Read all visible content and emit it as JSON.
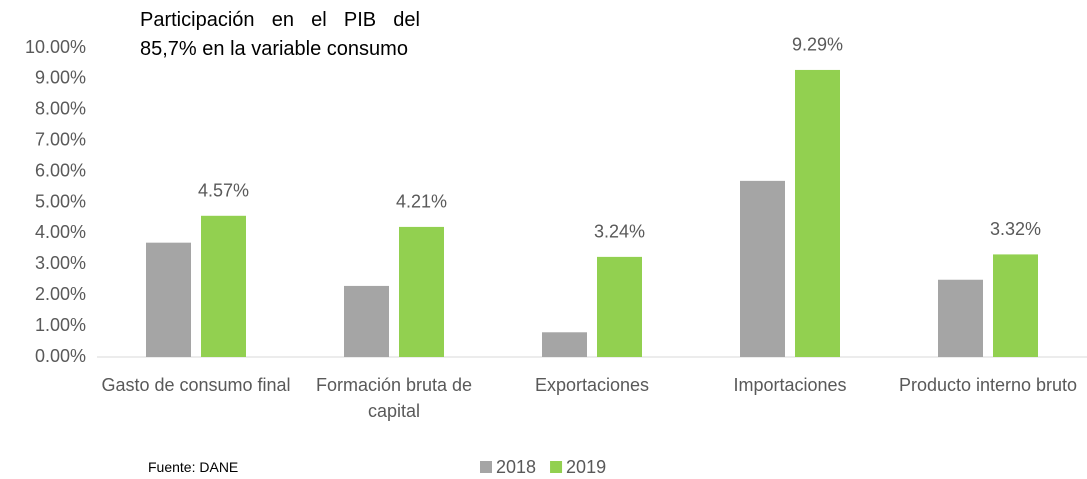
{
  "chart_data": {
    "type": "bar",
    "annotation": "Participación en el PIB del 85,7% en la variable consumo",
    "source": "Fuente: DANE",
    "categories": [
      "Gasto de consumo final",
      "Formación bruta de capital",
      "Exportaciones",
      "Importaciones",
      "Producto interno bruto"
    ],
    "series": [
      {
        "name": "2018",
        "color": "#a5a5a5",
        "values": [
          3.7,
          2.3,
          0.8,
          5.7,
          2.5
        ]
      },
      {
        "name": "2019",
        "color": "#92d050",
        "values": [
          4.57,
          4.21,
          3.24,
          9.29,
          3.32
        ],
        "value_labels": [
          "4.57%",
          "4.21%",
          "3.24%",
          "9.29%",
          "3.32%"
        ]
      }
    ],
    "ylim": [
      0,
      10
    ],
    "yticks": [
      {
        "value": 0,
        "label": "0.00%"
      },
      {
        "value": 1,
        "label": "1.00%"
      },
      {
        "value": 2,
        "label": "2.00%"
      },
      {
        "value": 3,
        "label": "3.00%"
      },
      {
        "value": 4,
        "label": "4.00%"
      },
      {
        "value": 5,
        "label": "5.00%"
      },
      {
        "value": 6,
        "label": "6.00%"
      },
      {
        "value": 7,
        "label": "7.00%"
      },
      {
        "value": 8,
        "label": "8.00%"
      },
      {
        "value": 9,
        "label": "9.00%"
      },
      {
        "value": 10,
        "label": "10.00%"
      }
    ],
    "grid": false,
    "legend": "bottom"
  }
}
